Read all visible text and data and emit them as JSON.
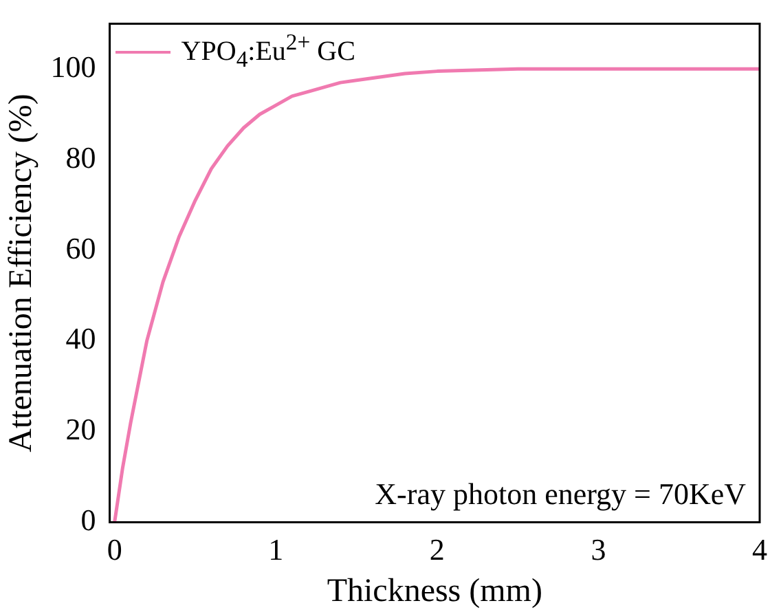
{
  "chart_data": {
    "type": "line",
    "xlabel": "Thickness (mm)",
    "ylabel": "Attenuation Efficiency (%)",
    "legend": "top left",
    "marker": "none",
    "line_style": "solid",
    "xlim": [
      -0.03,
      4
    ],
    "xticks": [
      0,
      1,
      2,
      3,
      4
    ],
    "ylim": [
      0,
      110
    ],
    "yticks": [
      0,
      20,
      40,
      60,
      80,
      100
    ],
    "annotations": [
      "X-ray photon energy = 70KeV"
    ],
    "series": [
      {
        "name": "YPO$_{4}$:Eu$^{2+}$ GC",
        "color": "#f07ab0",
        "x": [
          0,
          0.05,
          0.1,
          0.2,
          0.3,
          0.4,
          0.5,
          0.6,
          0.7,
          0.8,
          0.9,
          1.0,
          1.1,
          1.2,
          1.4,
          1.6,
          1.8,
          2.0,
          2.5,
          3.0,
          3.5,
          4.0
        ],
        "values": [
          0,
          12,
          22,
          40,
          53,
          63,
          71,
          78,
          83,
          87,
          90,
          92,
          94,
          95,
          97,
          98,
          99,
          99.5,
          100,
          100,
          100,
          100
        ]
      }
    ]
  }
}
